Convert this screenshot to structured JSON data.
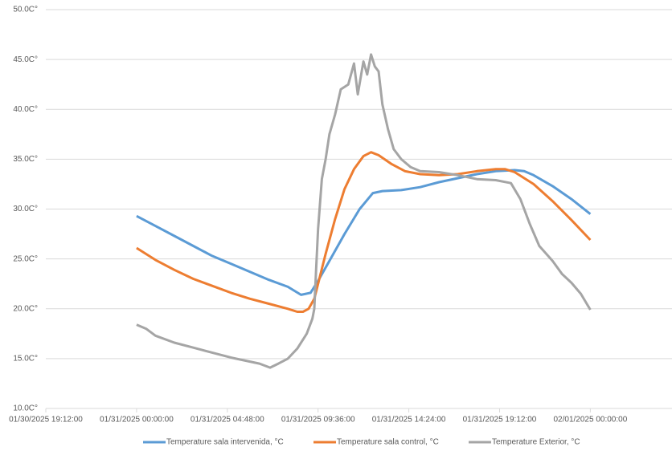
{
  "chart_data": {
    "type": "line",
    "xlim": [
      -4.8,
      28.32
    ],
    "xticks": [
      {
        "value": -4.8,
        "label": "01/30/2025 19:12:00"
      },
      {
        "value": 0,
        "label": "01/31/2025 00:00:00"
      },
      {
        "value": 4.8,
        "label": "01/31/2025 04:48:00"
      },
      {
        "value": 9.6,
        "label": "01/31/2025 09:36:00"
      },
      {
        "value": 14.4,
        "label": "01/31/2025 14:24:00"
      },
      {
        "value": 19.2,
        "label": "01/31/2025 19:12:00"
      },
      {
        "value": 24,
        "label": "02/01/2025 00:00:00"
      }
    ],
    "ylim": [
      10,
      50
    ],
    "yticks": [
      {
        "value": 10,
        "label": "10.0C°"
      },
      {
        "value": 15,
        "label": "15.0C°"
      },
      {
        "value": 20,
        "label": "20.0C°"
      },
      {
        "value": 25,
        "label": "25.0C°"
      },
      {
        "value": 30,
        "label": "30.0C°"
      },
      {
        "value": 35,
        "label": "35.0C°"
      },
      {
        "value": 40,
        "label": "40.0C°"
      },
      {
        "value": 45,
        "label": "45.0C°"
      },
      {
        "value": 50,
        "label": "50.0C°"
      }
    ],
    "grid": true,
    "legend": "bottom",
    "series": [
      {
        "name": "Temperature sala intervenida, °C",
        "color": "#5b9bd5",
        "x": [
          0,
          1,
          2,
          3,
          4,
          5,
          6,
          7,
          8,
          8.7,
          9.2,
          9.6,
          10.2,
          11,
          11.8,
          12.5,
          13,
          14,
          15,
          16,
          17,
          18,
          19,
          20,
          20.5,
          21,
          22,
          23,
          24
        ],
        "values": [
          29.3,
          28.3,
          27.3,
          26.3,
          25.3,
          24.5,
          23.7,
          22.9,
          22.2,
          21.4,
          21.6,
          22.8,
          24.8,
          27.5,
          30,
          31.6,
          31.8,
          31.9,
          32.2,
          32.7,
          33.1,
          33.5,
          33.8,
          33.9,
          33.8,
          33.4,
          32.3,
          31,
          29.5
        ]
      },
      {
        "name": "Temperature sala control, °C",
        "color": "#ed7d31",
        "x": [
          0,
          1,
          2,
          3,
          4,
          5,
          6,
          7,
          8,
          8.5,
          8.8,
          9.1,
          9.4,
          9.6,
          10,
          10.5,
          11,
          11.5,
          12,
          12.4,
          12.8,
          13.5,
          14.2,
          15,
          16,
          17,
          18,
          19,
          19.5,
          20,
          21,
          22,
          23,
          24
        ],
        "values": [
          26.1,
          24.9,
          23.9,
          23,
          22.3,
          21.6,
          21,
          20.5,
          20,
          19.7,
          19.7,
          20,
          21,
          22.5,
          25.5,
          29,
          32,
          34,
          35.3,
          35.7,
          35.4,
          34.5,
          33.8,
          33.5,
          33.4,
          33.5,
          33.8,
          34,
          34,
          33.7,
          32.5,
          30.8,
          28.9,
          26.9
        ]
      },
      {
        "name": "Temperature Exterior, °C",
        "color": "#a5a5a5",
        "x": [
          0,
          0.5,
          1,
          2,
          3,
          4,
          5,
          6,
          6.5,
          7.06,
          7.5,
          8,
          8.5,
          9,
          9.3,
          9.4,
          9.5,
          9.6,
          9.8,
          10,
          10.2,
          10.5,
          10.8,
          11.2,
          11.5,
          11.7,
          12,
          12.2,
          12.4,
          12.6,
          12.8,
          13,
          13.3,
          13.6,
          14,
          14.5,
          15,
          16,
          17,
          18,
          19,
          19.8,
          20.3,
          20.8,
          21.3,
          22,
          22.5,
          23,
          23.5,
          24
        ],
        "values": [
          18.4,
          18,
          17.3,
          16.6,
          16.1,
          15.6,
          15.1,
          14.7,
          14.5,
          14.1,
          14.5,
          15,
          16,
          17.5,
          19,
          20,
          24,
          28,
          33,
          35,
          37.5,
          39.5,
          42,
          42.5,
          44.6,
          41.5,
          44.8,
          43.5,
          45.5,
          44.3,
          43.8,
          40.5,
          38,
          36,
          35,
          34.2,
          33.8,
          33.7,
          33.4,
          33,
          32.9,
          32.6,
          31,
          28.5,
          26.3,
          24.8,
          23.5,
          22.6,
          21.5,
          19.9
        ]
      }
    ]
  }
}
